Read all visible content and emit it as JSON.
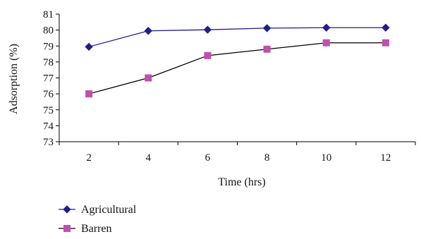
{
  "chart_data": {
    "type": "line",
    "x": [
      2,
      4,
      6,
      8,
      10,
      12
    ],
    "series": [
      {
        "name": "Agricultural",
        "values": [
          78.95,
          79.95,
          80.02,
          80.12,
          80.15,
          80.15
        ],
        "color": "#1e1e8c",
        "marker": "diamond"
      },
      {
        "name": "Barren",
        "values": [
          76.0,
          77.0,
          78.4,
          78.8,
          79.2,
          79.2
        ],
        "color": "#c04fae",
        "marker": "square"
      }
    ],
    "title": "",
    "xlabel": "Time (hrs)",
    "ylabel": "Adsorption (%)",
    "xticks": [
      "2",
      "4",
      "6",
      "8",
      "10",
      "12"
    ],
    "yticks": [
      "73",
      "74",
      "75",
      "76",
      "77",
      "78",
      "79",
      "80",
      "81"
    ],
    "ylim": [
      73,
      81
    ],
    "grid": false,
    "legend_position": "bottom-left"
  }
}
